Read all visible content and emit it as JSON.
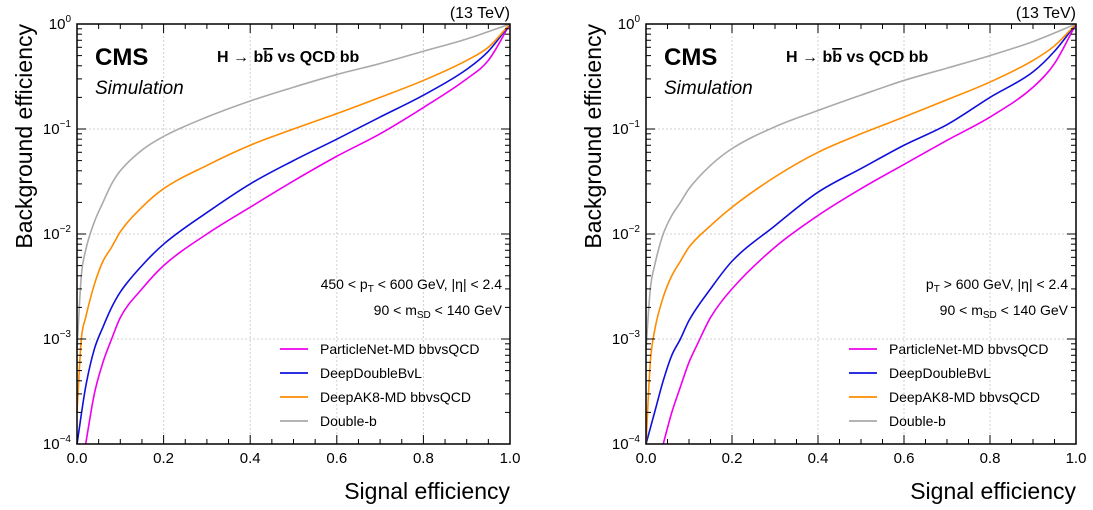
{
  "chart_data": [
    {
      "type": "line",
      "energy_label": "(13 TeV)",
      "experiment": "CMS",
      "subtitle": "Simulation",
      "process": {
        "lead": "H → b",
        "bbar": "b",
        "tail": " vs QCD bb"
      },
      "xlabel": "Signal efficiency",
      "ylabel": "Background efficiency",
      "xlim": [
        0,
        1
      ],
      "ylim": [
        0.0001,
        1
      ],
      "yscale": "log",
      "grid": true,
      "legend_position": "bottom-right",
      "x_ticks": [
        "0.0",
        "0.2",
        "0.4",
        "0.6",
        "0.8",
        "1.0"
      ],
      "cut_lines": [
        {
          "parts": [
            {
              "t": "450 < p"
            },
            {
              "t": "T",
              "sub": true
            },
            {
              "t": " < 600 GeV, |η| < 2.4"
            }
          ]
        },
        {
          "parts": [
            {
              "t": "90 < m"
            },
            {
              "t": "SD",
              "sub": true
            },
            {
              "t": " < 140 GeV"
            }
          ]
        }
      ],
      "series": [
        {
          "name": "ParticleNet-MD bbvsQCD",
          "color": "#ee00ee",
          "x": [
            0.02,
            0.04,
            0.06,
            0.08,
            0.1,
            0.15,
            0.2,
            0.3,
            0.4,
            0.5,
            0.6,
            0.7,
            0.8,
            0.9,
            0.95,
            1.0
          ],
          "y": [
            0.0001,
            0.0003,
            0.0006,
            0.001,
            0.0016,
            0.003,
            0.005,
            0.01,
            0.018,
            0.032,
            0.055,
            0.09,
            0.16,
            0.3,
            0.45,
            1.0
          ]
        },
        {
          "name": "DeepDoubleBvL",
          "color": "#1010dd",
          "x": [
            0.0,
            0.02,
            0.04,
            0.06,
            0.08,
            0.1,
            0.15,
            0.2,
            0.3,
            0.4,
            0.5,
            0.6,
            0.7,
            0.8,
            0.9,
            0.95,
            1.0
          ],
          "y": [
            0.0001,
            0.00035,
            0.0008,
            0.0013,
            0.002,
            0.0028,
            0.005,
            0.008,
            0.016,
            0.03,
            0.05,
            0.08,
            0.13,
            0.21,
            0.37,
            0.55,
            1.0
          ]
        },
        {
          "name": "DeepAK8-MD bbvsQCD",
          "color": "#ff8c00",
          "x": [
            0.0,
            0.01,
            0.02,
            0.04,
            0.06,
            0.08,
            0.1,
            0.15,
            0.2,
            0.3,
            0.4,
            0.5,
            0.6,
            0.7,
            0.8,
            0.9,
            0.95,
            1.0
          ],
          "y": [
            0.0002,
            0.001,
            0.0016,
            0.0033,
            0.0055,
            0.0075,
            0.0105,
            0.018,
            0.027,
            0.045,
            0.07,
            0.1,
            0.14,
            0.2,
            0.29,
            0.45,
            0.6,
            1.0
          ]
        },
        {
          "name": "Double-b",
          "color": "#aaaaaa",
          "x": [
            0.0,
            0.01,
            0.02,
            0.04,
            0.06,
            0.08,
            0.1,
            0.15,
            0.2,
            0.3,
            0.4,
            0.5,
            0.6,
            0.7,
            0.8,
            0.9,
            1.0
          ],
          "y": [
            0.0008,
            0.004,
            0.007,
            0.013,
            0.02,
            0.03,
            0.04,
            0.063,
            0.085,
            0.13,
            0.185,
            0.25,
            0.33,
            0.42,
            0.55,
            0.72,
            1.0
          ]
        }
      ]
    },
    {
      "type": "line",
      "energy_label": "(13 TeV)",
      "experiment": "CMS",
      "subtitle": "Simulation",
      "process": {
        "lead": "H → b",
        "bbar": "b",
        "tail": " vs QCD bb"
      },
      "xlabel": "Signal efficiency",
      "ylabel": "Background efficiency",
      "xlim": [
        0,
        1
      ],
      "ylim": [
        0.0001,
        1
      ],
      "yscale": "log",
      "grid": true,
      "legend_position": "bottom-right",
      "x_ticks": [
        "0.0",
        "0.2",
        "0.4",
        "0.6",
        "0.8",
        "1.0"
      ],
      "cut_lines": [
        {
          "parts": [
            {
              "t": "p"
            },
            {
              "t": "T",
              "sub": true
            },
            {
              "t": " > 600 GeV,   |η| < 2.4"
            }
          ]
        },
        {
          "parts": [
            {
              "t": "90 < m"
            },
            {
              "t": "SD",
              "sub": true
            },
            {
              "t": " < 140 GeV"
            }
          ]
        }
      ],
      "series": [
        {
          "name": "ParticleNet-MD bbvsQCD",
          "color": "#ee00ee",
          "x": [
            0.04,
            0.06,
            0.08,
            0.1,
            0.12,
            0.15,
            0.2,
            0.3,
            0.4,
            0.5,
            0.6,
            0.7,
            0.8,
            0.9,
            0.95,
            1.0
          ],
          "y": [
            0.0001,
            0.0002,
            0.00035,
            0.0006,
            0.0009,
            0.0016,
            0.003,
            0.0075,
            0.015,
            0.027,
            0.046,
            0.078,
            0.13,
            0.25,
            0.42,
            1.0
          ]
        },
        {
          "name": "DeepDoubleBvL",
          "color": "#1010dd",
          "x": [
            0.0,
            0.02,
            0.04,
            0.06,
            0.08,
            0.1,
            0.15,
            0.2,
            0.3,
            0.4,
            0.5,
            0.6,
            0.7,
            0.8,
            0.9,
            0.95,
            1.0
          ],
          "y": [
            0.0001,
            0.0002,
            0.0004,
            0.0007,
            0.001,
            0.0015,
            0.003,
            0.0055,
            0.012,
            0.025,
            0.042,
            0.07,
            0.11,
            0.2,
            0.35,
            0.55,
            1.0
          ]
        },
        {
          "name": "DeepAK8-MD bbvsQCD",
          "color": "#ff8c00",
          "x": [
            0.0,
            0.01,
            0.02,
            0.04,
            0.06,
            0.08,
            0.1,
            0.15,
            0.2,
            0.3,
            0.4,
            0.5,
            0.6,
            0.7,
            0.8,
            0.9,
            0.95,
            1.0
          ],
          "y": [
            0.0001,
            0.0006,
            0.0012,
            0.0025,
            0.004,
            0.0055,
            0.0075,
            0.012,
            0.018,
            0.035,
            0.06,
            0.09,
            0.13,
            0.19,
            0.28,
            0.45,
            0.62,
            1.0
          ]
        },
        {
          "name": "Double-b",
          "color": "#aaaaaa",
          "x": [
            0.0,
            0.01,
            0.02,
            0.04,
            0.06,
            0.08,
            0.1,
            0.15,
            0.2,
            0.3,
            0.4,
            0.5,
            0.6,
            0.7,
            0.8,
            0.9,
            1.0
          ],
          "y": [
            0.0008,
            0.003,
            0.005,
            0.01,
            0.015,
            0.02,
            0.027,
            0.045,
            0.065,
            0.105,
            0.15,
            0.21,
            0.29,
            0.38,
            0.5,
            0.68,
            1.0
          ]
        }
      ]
    }
  ]
}
